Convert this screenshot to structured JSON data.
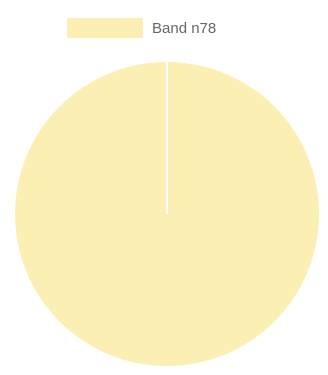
{
  "chart_data": {
    "type": "pie",
    "categories": [
      "Band n78"
    ],
    "values": [
      100
    ],
    "colors": [
      "#fcefb3"
    ],
    "legend": "top"
  }
}
